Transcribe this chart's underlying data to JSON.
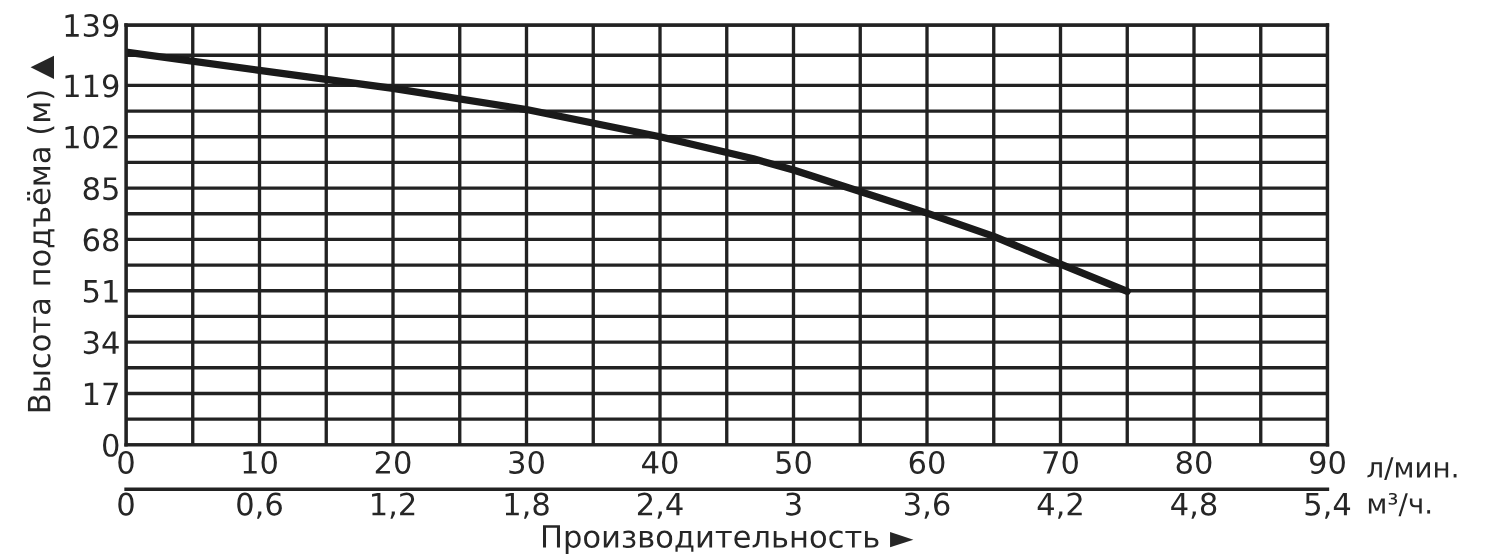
{
  "chart_data": {
    "type": "line",
    "x": [
      0,
      10,
      20,
      30,
      40,
      47,
      50,
      60,
      65,
      70,
      75
    ],
    "series": [
      {
        "color": "#1a1a1a",
        "values": [
          130,
          124,
          118,
          111,
          102,
          94.7,
          91,
          76.7,
          69,
          59.8,
          50.8
        ]
      }
    ],
    "xlim": [
      0,
      90
    ],
    "xticks": [
      0,
      {
        "value": 5,
        "label": null
      },
      10,
      {
        "value": 15,
        "label": null
      },
      20,
      {
        "value": 25,
        "label": null
      },
      30,
      {
        "value": 35,
        "label": null
      },
      40,
      {
        "value": 45,
        "label": null
      },
      50,
      {
        "value": 55,
        "label": null
      },
      60,
      {
        "value": 65,
        "label": null
      },
      70,
      {
        "value": 75,
        "label": null
      },
      80,
      {
        "value": 85,
        "label": null
      },
      90
    ],
    "x2lim": [
      0,
      5.4
    ],
    "x2ticks": [
      0,
      {
        "value": 0.6,
        "label": "0,6"
      },
      {
        "value": 1.2,
        "label": "1,2"
      },
      {
        "value": 1.8,
        "label": "1,8"
      },
      {
        "value": 2.4,
        "label": "2,4"
      },
      3,
      {
        "value": 3.6,
        "label": "3,6"
      },
      {
        "value": 4.2,
        "label": "4,2"
      },
      {
        "value": 4.8,
        "label": "4,8"
      },
      {
        "value": 5.4,
        "label": "5,4"
      }
    ],
    "ylim": [
      0,
      139
    ],
    "yticks": [
      0,
      {
        "value": 8.5,
        "label": null
      },
      17,
      {
        "value": 25.5,
        "label": null
      },
      34,
      {
        "value": 42.5,
        "label": null
      },
      51,
      {
        "value": 59.5,
        "label": null
      },
      68,
      {
        "value": 76.5,
        "label": null
      },
      85,
      {
        "value": 93.5,
        "label": null
      },
      102,
      {
        "value": 110.5,
        "label": null
      },
      119,
      {
        "value": 129,
        "label": null
      },
      139
    ],
    "xlabel": "Производительность ►",
    "ylabel": "Высота подъёма (м) ▲",
    "annotations": [
      "л/мин.",
      "м³/ч."
    ],
    "grid": true,
    "line_style": "solid",
    "marker": "none"
  }
}
